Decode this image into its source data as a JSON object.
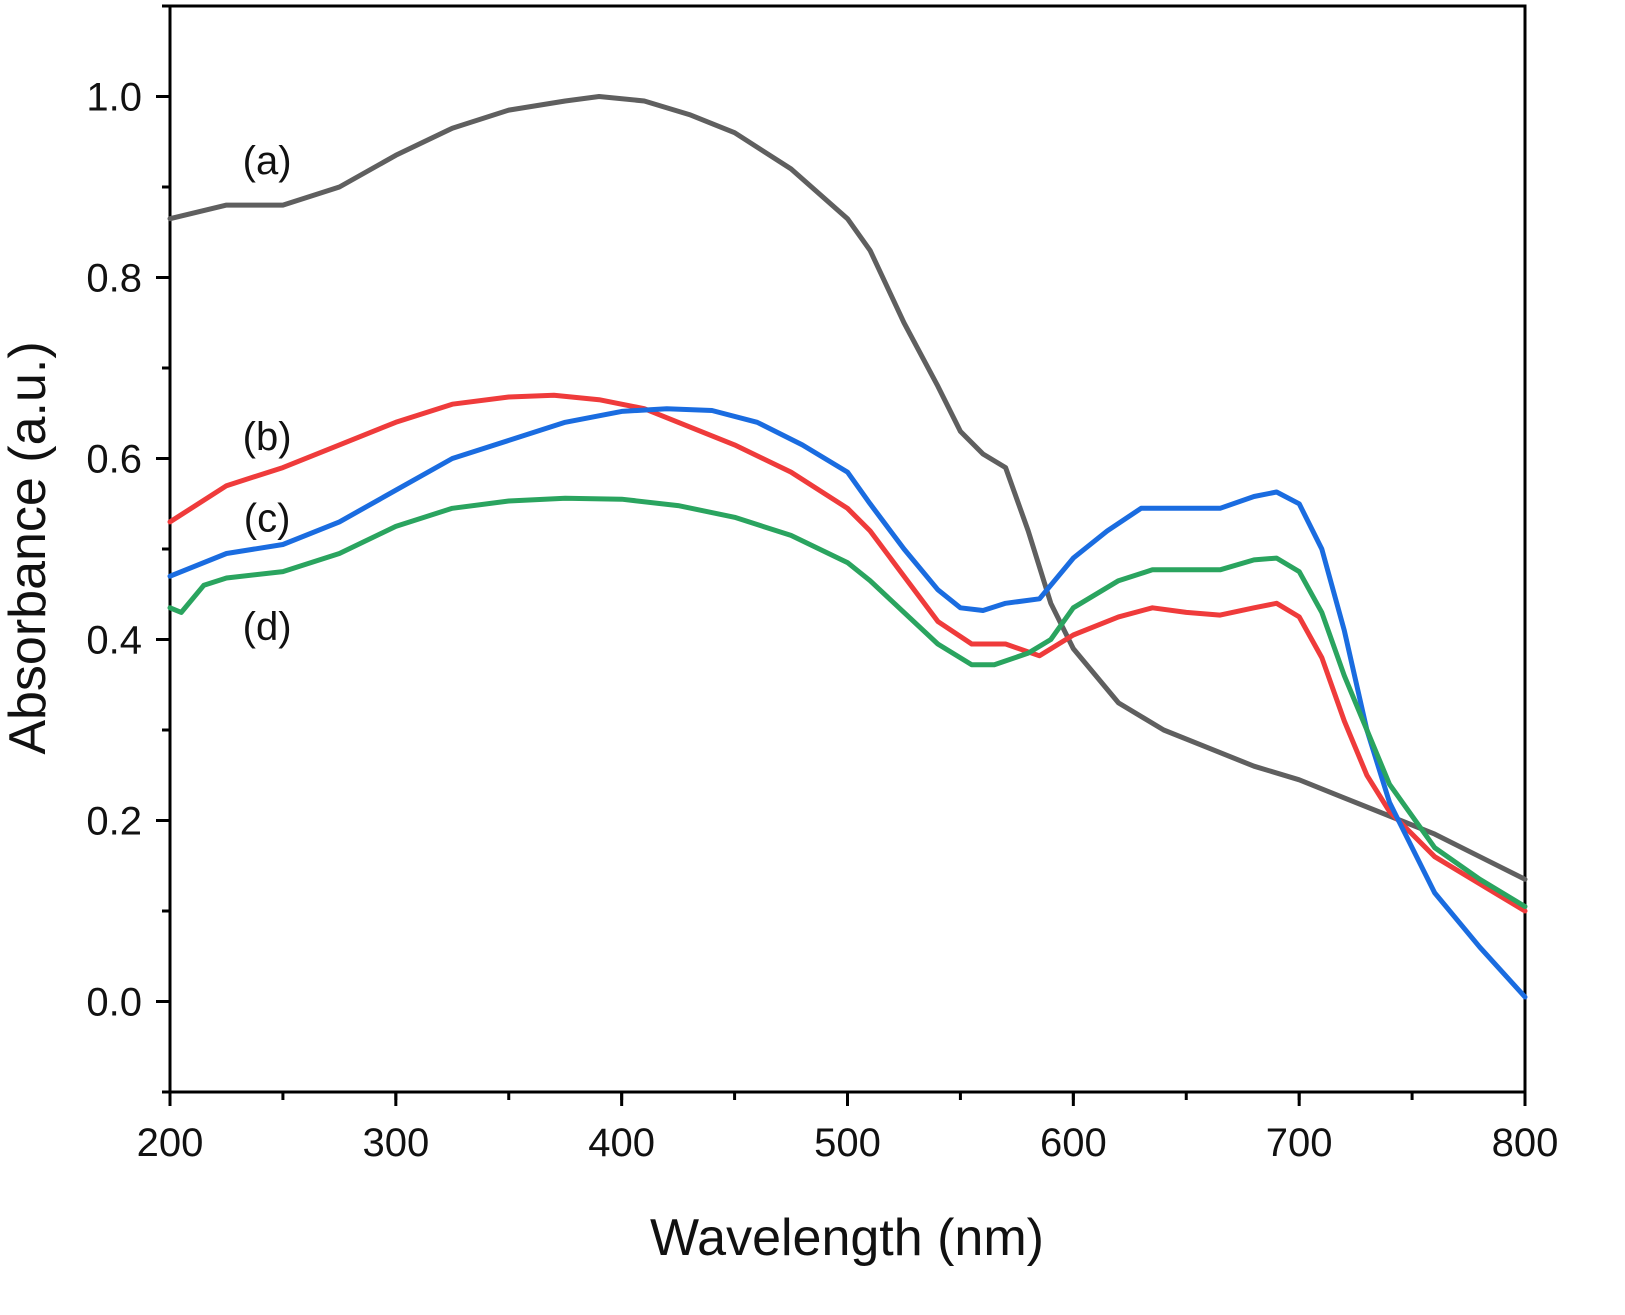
{
  "chart_data": {
    "type": "line",
    "title": "",
    "xlabel": "Wavelength (nm)",
    "ylabel": "Absorbance (a.u.)",
    "xlim": [
      200,
      800
    ],
    "ylim": [
      -0.1,
      1.1
    ],
    "xticks": [
      "200",
      "300",
      "400",
      "500",
      "600",
      "700",
      "800"
    ],
    "yticks": [
      "0.0",
      "0.2",
      "0.4",
      "0.6",
      "0.8",
      "1.0"
    ],
    "x_minor_step": 50,
    "y_minor_step": 0.1,
    "grid": false,
    "legend": "none",
    "series": [
      {
        "name": "(a)",
        "color": "#5f5f5f",
        "label_at": [
          243,
          0.93
        ],
        "x": [
          200,
          225,
          250,
          275,
          300,
          325,
          350,
          375,
          390,
          410,
          430,
          450,
          475,
          500,
          510,
          525,
          540,
          550,
          560,
          570,
          580,
          590,
          600,
          620,
          640,
          660,
          680,
          700,
          720,
          740,
          760,
          780,
          800
        ],
        "y": [
          0.865,
          0.88,
          0.88,
          0.9,
          0.935,
          0.965,
          0.985,
          0.995,
          1.0,
          0.995,
          0.98,
          0.96,
          0.92,
          0.865,
          0.83,
          0.75,
          0.68,
          0.63,
          0.605,
          0.59,
          0.52,
          0.44,
          0.39,
          0.33,
          0.3,
          0.28,
          0.26,
          0.245,
          0.225,
          0.205,
          0.185,
          0.16,
          0.135
        ]
      },
      {
        "name": "(b)",
        "color": "#ef3b3b",
        "label_at": [
          243,
          0.625
        ],
        "x": [
          200,
          225,
          250,
          275,
          300,
          325,
          350,
          370,
          390,
          410,
          430,
          450,
          475,
          500,
          510,
          525,
          540,
          555,
          570,
          585,
          600,
          620,
          635,
          650,
          665,
          680,
          690,
          700,
          710,
          720,
          730,
          740,
          760,
          780,
          800
        ],
        "y": [
          0.53,
          0.57,
          0.59,
          0.615,
          0.64,
          0.66,
          0.668,
          0.67,
          0.665,
          0.655,
          0.635,
          0.615,
          0.585,
          0.545,
          0.52,
          0.47,
          0.42,
          0.395,
          0.395,
          0.382,
          0.405,
          0.425,
          0.435,
          0.43,
          0.427,
          0.435,
          0.44,
          0.425,
          0.38,
          0.31,
          0.25,
          0.21,
          0.16,
          0.13,
          0.1
        ]
      },
      {
        "name": "(c)",
        "color": "#1a6ce0",
        "label_at": [
          243,
          0.535
        ],
        "x": [
          200,
          225,
          250,
          275,
          300,
          325,
          350,
          375,
          400,
          420,
          440,
          460,
          480,
          500,
          510,
          525,
          540,
          550,
          560,
          570,
          585,
          600,
          615,
          630,
          650,
          665,
          680,
          690,
          700,
          710,
          720,
          730,
          740,
          760,
          780,
          800
        ],
        "y": [
          0.47,
          0.495,
          0.505,
          0.53,
          0.565,
          0.6,
          0.62,
          0.64,
          0.652,
          0.655,
          0.653,
          0.64,
          0.615,
          0.585,
          0.55,
          0.5,
          0.455,
          0.435,
          0.432,
          0.44,
          0.445,
          0.49,
          0.52,
          0.545,
          0.545,
          0.545,
          0.558,
          0.563,
          0.55,
          0.5,
          0.41,
          0.3,
          0.22,
          0.12,
          0.06,
          0.005
        ]
      },
      {
        "name": "(d)",
        "color": "#2aa45f",
        "label_at": [
          243,
          0.415
        ],
        "x": [
          200,
          205,
          215,
          225,
          250,
          275,
          300,
          325,
          350,
          375,
          400,
          425,
          450,
          475,
          500,
          510,
          525,
          540,
          555,
          565,
          580,
          590,
          600,
          620,
          635,
          650,
          665,
          680,
          690,
          700,
          710,
          720,
          730,
          740,
          760,
          780,
          800
        ],
        "y": [
          0.435,
          0.43,
          0.46,
          0.468,
          0.475,
          0.495,
          0.525,
          0.545,
          0.553,
          0.556,
          0.555,
          0.548,
          0.535,
          0.515,
          0.485,
          0.465,
          0.43,
          0.395,
          0.372,
          0.372,
          0.385,
          0.4,
          0.435,
          0.465,
          0.477,
          0.477,
          0.477,
          0.488,
          0.49,
          0.475,
          0.43,
          0.36,
          0.3,
          0.24,
          0.17,
          0.135,
          0.105
        ]
      }
    ]
  }
}
